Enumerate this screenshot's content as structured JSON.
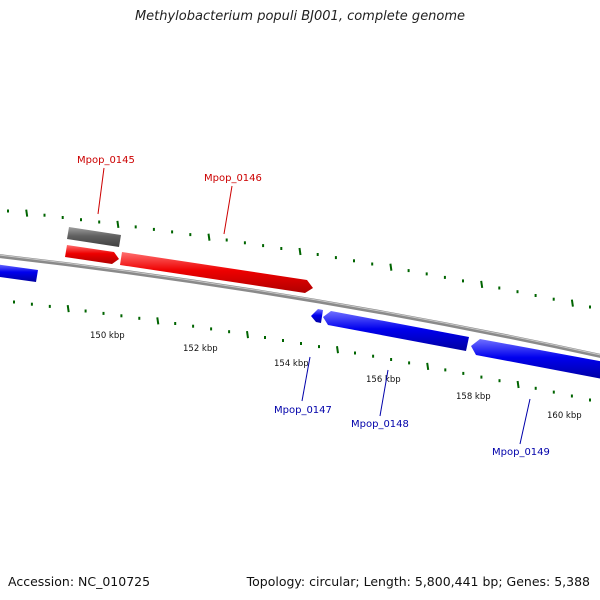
{
  "title": "Methylobacterium populi BJ001, complete genome",
  "footer": {
    "accession": "Accession: NC_010725",
    "summary": "Topology: circular; Length: 5,800,441 bp; Genes: 5,388"
  },
  "colors": {
    "forward": "#e00000",
    "reverse": "#0000e0",
    "other": "#606060",
    "backbone": "#808080",
    "ticks": "#006400",
    "forward_label": "#cc0000",
    "reverse_label": "#0000aa"
  },
  "scale": {
    "unit": "kbp",
    "major_labels": [
      "150 kbp",
      "152 kbp",
      "154 kbp",
      "156 kbp",
      "158 kbp",
      "160 kbp"
    ]
  },
  "genes": [
    {
      "name": "Mpop_0145",
      "strand": "forward"
    },
    {
      "name": "Mpop_0146",
      "strand": "forward"
    },
    {
      "name": "Mpop_0147",
      "strand": "reverse"
    },
    {
      "name": "Mpop_0148",
      "strand": "reverse"
    },
    {
      "name": "Mpop_0149",
      "strand": "reverse"
    }
  ]
}
